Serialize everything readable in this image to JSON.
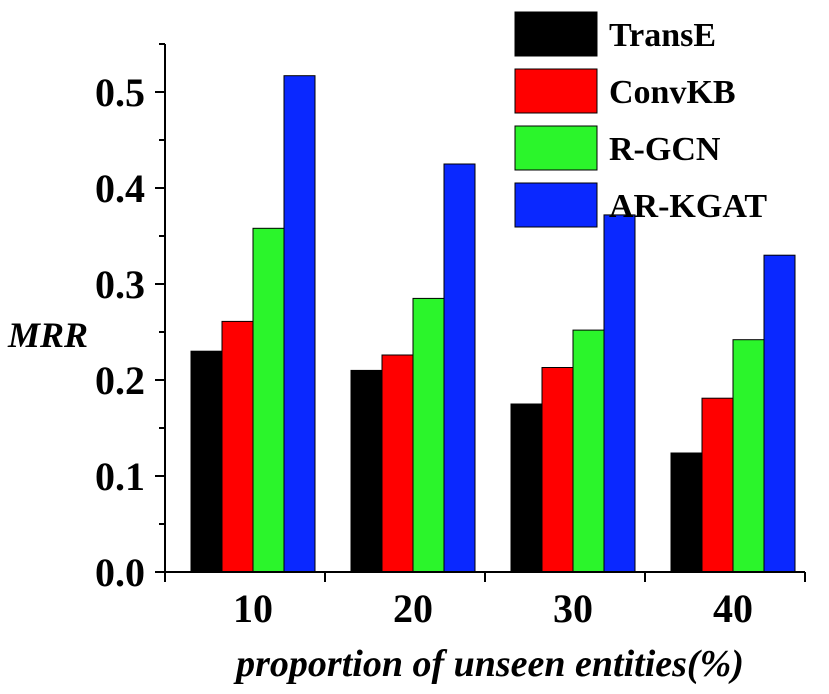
{
  "chart_data": {
    "type": "bar",
    "xlabel": "proportion of unseen entities(%)",
    "ylabel": "MRR",
    "ylim": [
      0,
      0.55
    ],
    "yticks": [
      "0.0",
      "0.1",
      "0.2",
      "0.3",
      "0.4",
      "0.5"
    ],
    "categories": [
      "10",
      "20",
      "30",
      "40"
    ],
    "legend_position": "top-right",
    "series": [
      {
        "name": "TransE",
        "color": "#000000",
        "values": [
          0.23,
          0.21,
          0.175,
          0.124
        ]
      },
      {
        "name": "ConvKB",
        "color": "#ff0000",
        "values": [
          0.261,
          0.226,
          0.213,
          0.181
        ]
      },
      {
        "name": "R-GCN",
        "color": "#2bf52b",
        "values": [
          0.358,
          0.285,
          0.252,
          0.242
        ]
      },
      {
        "name": "AR-KGAT",
        "color": "#0a28ff",
        "values": [
          0.517,
          0.425,
          0.372,
          0.33
        ]
      }
    ]
  }
}
